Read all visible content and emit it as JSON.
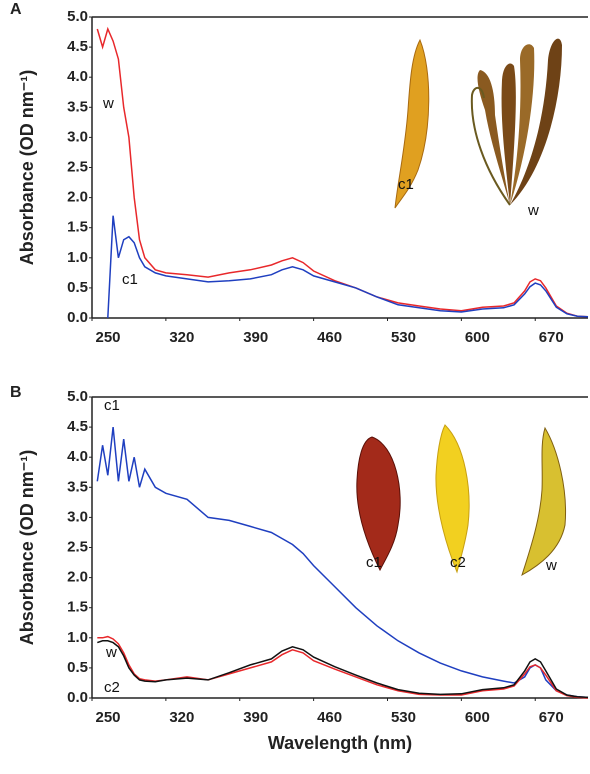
{
  "chart_data": [
    {
      "type": "line",
      "panel": "A",
      "ylabel": "Absorbance (OD nm⁻¹)",
      "x": [
        255,
        260,
        265,
        270,
        275,
        280,
        285,
        290,
        295,
        300,
        310,
        320,
        340,
        360,
        380,
        400,
        420,
        430,
        440,
        450,
        460,
        480,
        500,
        520,
        540,
        560,
        580,
        600,
        620,
        640,
        650,
        660,
        665,
        670,
        675,
        680,
        690,
        700,
        710,
        720
      ],
      "series": [
        {
          "name": "w",
          "color": "#e8282b",
          "values": [
            4.8,
            4.5,
            4.8,
            4.6,
            4.3,
            3.5,
            3.0,
            2.0,
            1.3,
            1.0,
            0.8,
            0.75,
            0.72,
            0.68,
            0.75,
            0.8,
            0.88,
            0.95,
            1.0,
            0.92,
            0.78,
            0.62,
            0.5,
            0.35,
            0.25,
            0.2,
            0.15,
            0.12,
            0.18,
            0.2,
            0.25,
            0.45,
            0.6,
            0.65,
            0.62,
            0.5,
            0.2,
            0.08,
            0.03,
            0.02
          ]
        },
        {
          "name": "c1",
          "color": "#1f3fc0",
          "values": [
            null,
            null,
            0.0,
            1.7,
            1.0,
            1.3,
            1.35,
            1.25,
            1.0,
            0.85,
            0.75,
            0.7,
            0.65,
            0.6,
            0.62,
            0.65,
            0.72,
            0.8,
            0.85,
            0.8,
            0.7,
            0.6,
            0.5,
            0.35,
            0.22,
            0.17,
            0.12,
            0.1,
            0.15,
            0.17,
            0.22,
            0.4,
            0.52,
            0.58,
            0.55,
            0.45,
            0.18,
            0.07,
            0.03,
            0.02
          ]
        }
      ],
      "annotations": [
        "w",
        "c1",
        "c1",
        "w"
      ],
      "xlim": [
        250,
        720
      ],
      "xticks": [
        250,
        320,
        390,
        460,
        530,
        600,
        670
      ],
      "ylim": [
        0,
        5
      ],
      "yticks": [
        {
          "value": 0,
          "label": "0.0"
        },
        0.5,
        {
          "value": 1,
          "label": "1.0"
        },
        1.5,
        {
          "value": 2,
          "label": "2.0"
        },
        2.5,
        {
          "value": 3,
          "label": "3.0"
        },
        3.5,
        {
          "value": 4,
          "label": "4.0"
        },
        4.5,
        {
          "value": 5,
          "label": "5.0"
        }
      ]
    },
    {
      "type": "line",
      "panel": "B",
      "ylabel": "Absorbance (OD nm⁻¹)",
      "xlabel": "Wavelength (nm)",
      "x": [
        255,
        260,
        265,
        270,
        275,
        280,
        285,
        290,
        295,
        300,
        310,
        320,
        340,
        360,
        380,
        400,
        420,
        430,
        440,
        450,
        460,
        480,
        500,
        520,
        540,
        560,
        580,
        600,
        620,
        640,
        650,
        660,
        665,
        670,
        675,
        680,
        690,
        700,
        710,
        720
      ],
      "series": [
        {
          "name": "c1",
          "color": "#1f3fc0",
          "values": [
            3.6,
            4.2,
            3.7,
            4.5,
            3.6,
            4.3,
            3.6,
            4.0,
            3.5,
            3.8,
            3.5,
            3.4,
            3.3,
            3.0,
            2.95,
            2.85,
            2.75,
            2.65,
            2.55,
            2.4,
            2.2,
            1.85,
            1.5,
            1.2,
            0.95,
            0.75,
            0.58,
            0.45,
            0.35,
            0.28,
            0.25,
            0.35,
            0.5,
            0.55,
            0.5,
            0.3,
            0.12,
            0.05,
            0.02,
            0.01
          ]
        },
        {
          "name": "w",
          "color": "#e8282b",
          "values": [
            1.0,
            1.0,
            1.02,
            0.98,
            0.9,
            0.75,
            0.55,
            0.4,
            0.32,
            0.3,
            0.28,
            0.3,
            0.35,
            0.3,
            0.4,
            0.5,
            0.6,
            0.72,
            0.8,
            0.75,
            0.62,
            0.48,
            0.35,
            0.22,
            0.12,
            0.06,
            0.05,
            0.05,
            0.12,
            0.15,
            0.2,
            0.4,
            0.52,
            0.55,
            0.5,
            0.38,
            0.12,
            0.04,
            0.01,
            0.0
          ]
        },
        {
          "name": "c2",
          "color": "#111111",
          "values": [
            0.92,
            0.95,
            0.95,
            0.92,
            0.85,
            0.7,
            0.5,
            0.38,
            0.3,
            0.28,
            0.27,
            0.3,
            0.33,
            0.3,
            0.42,
            0.55,
            0.65,
            0.78,
            0.85,
            0.8,
            0.68,
            0.52,
            0.38,
            0.25,
            0.14,
            0.08,
            0.06,
            0.07,
            0.14,
            0.17,
            0.22,
            0.45,
            0.6,
            0.65,
            0.6,
            0.45,
            0.15,
            0.05,
            0.02,
            0.01
          ]
        }
      ],
      "annotations": [
        "c1",
        "w",
        "c2",
        "c1",
        "c2",
        "w"
      ],
      "xlim": [
        250,
        720
      ],
      "xticks": [
        250,
        320,
        390,
        460,
        530,
        600,
        670
      ],
      "ylim": [
        0,
        5
      ],
      "yticks": [
        {
          "value": 0,
          "label": "0.0"
        },
        0.5,
        {
          "value": 1,
          "label": "1.0"
        },
        1.5,
        {
          "value": 2,
          "label": "2.0"
        },
        2.5,
        {
          "value": 3,
          "label": "3.0"
        },
        3.5,
        {
          "value": 4,
          "label": "4.0"
        },
        4.5,
        {
          "value": 5,
          "label": "5.0"
        }
      ]
    }
  ]
}
